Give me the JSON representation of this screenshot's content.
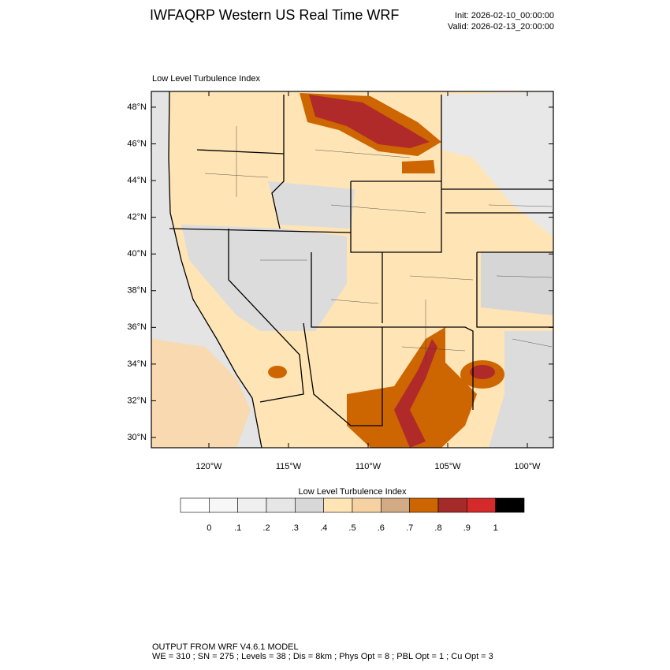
{
  "header": {
    "title": "IWFAQRP Western US Real Time WRF",
    "init": "Init: 2026-02-10_00:00:00",
    "valid": "Valid: 2026-02-13_20:00:00"
  },
  "map": {
    "label": "Low Level Turbulence Index",
    "lat_ticks": [
      {
        "value": 30,
        "label": "30°N"
      },
      {
        "value": 32,
        "label": "32°N"
      },
      {
        "value": 34,
        "label": "34°N"
      },
      {
        "value": 36,
        "label": "36°N"
      },
      {
        "value": 38,
        "label": "38°N"
      },
      {
        "value": 40,
        "label": "40°N"
      },
      {
        "value": 42,
        "label": "42°N"
      },
      {
        "value": 44,
        "label": "44°N"
      },
      {
        "value": 46,
        "label": "46°N"
      },
      {
        "value": 48,
        "label": "48°N"
      }
    ],
    "lon_ticks": [
      {
        "value": -120,
        "label": "120°W"
      },
      {
        "value": -115,
        "label": "115°W"
      },
      {
        "value": -110,
        "label": "110°W"
      },
      {
        "value": -105,
        "label": "105°W"
      },
      {
        "value": -100,
        "label": "100°W"
      }
    ]
  },
  "colorbar": {
    "title": "Low Level Turbulence Index",
    "colors": [
      "#ffffff",
      "#f7f7f7",
      "#efefef",
      "#e6e6e6",
      "#d8d8d8",
      "#ffe4b5",
      "#f6d2a2",
      "#d2ab84",
      "#cd6600",
      "#a52a2a",
      "#d42a2a",
      "#000000"
    ],
    "ticks": [
      0,
      {
        "value": 0.1,
        "label": ".1"
      },
      {
        "value": 0.2,
        "label": ".2"
      },
      {
        "value": 0.3,
        "label": ".3"
      },
      {
        "value": 0.4,
        "label": ".4"
      },
      {
        "value": 0.5,
        "label": ".5"
      },
      {
        "value": 0.6,
        "label": ".6"
      },
      {
        "value": 0.7,
        "label": ".7"
      },
      {
        "value": 0.8,
        "label": ".8"
      },
      {
        "value": 0.9,
        "label": ".9"
      },
      1
    ]
  },
  "footer": {
    "line1": "OUTPUT FROM WRF V4.6.1 MODEL",
    "line2": "WE = 310 ; SN = 275 ; Levels = 38 ; Dis = 8km ; Phys Opt = 8 ; PBL Opt = 1 ; Cu Opt = 3"
  }
}
